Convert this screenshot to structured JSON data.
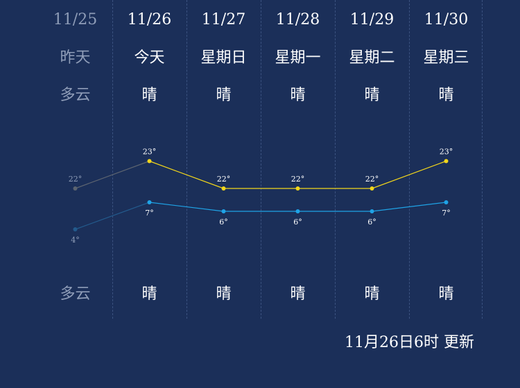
{
  "days": [
    {
      "date": "11/25",
      "weekday": "昨天",
      "weather_day": "多云",
      "weather_night": "多云",
      "past": true
    },
    {
      "date": "11/26",
      "weekday": "今天",
      "weather_day": "晴",
      "weather_night": "晴",
      "past": false
    },
    {
      "date": "11/27",
      "weekday": "星期日",
      "weather_day": "晴",
      "weather_night": "晴",
      "past": false
    },
    {
      "date": "11/28",
      "weekday": "星期一",
      "weather_day": "晴",
      "weather_night": "晴",
      "past": false
    },
    {
      "date": "11/29",
      "weekday": "星期二",
      "weather_day": "晴",
      "weather_night": "晴",
      "past": false
    },
    {
      "date": "11/30",
      "weekday": "星期三",
      "weather_day": "晴",
      "weather_night": "晴",
      "past": false
    }
  ],
  "chart_data": {
    "type": "line",
    "x": [
      "11/25",
      "11/26",
      "11/27",
      "11/28",
      "11/29",
      "11/30"
    ],
    "series": [
      {
        "values": [
          22,
          23,
          22,
          22,
          22,
          23
        ],
        "labels": [
          "22°",
          "23°",
          "22°",
          "22°",
          "22°",
          "23°"
        ],
        "color": "#f2d61b"
      },
      {
        "values": [
          4,
          7,
          6,
          6,
          6,
          7
        ],
        "labels": [
          "4°",
          "7°",
          "6°",
          "6°",
          "6°",
          "7°"
        ],
        "color": "#1fa3e6"
      }
    ],
    "past_color_high": "#5c6470",
    "past_color_low": "#235a8c"
  },
  "footer": {
    "updated": "11月26日6时 更新"
  }
}
